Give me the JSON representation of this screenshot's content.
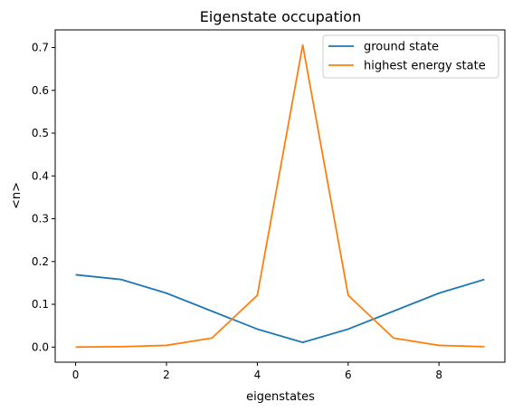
{
  "chart_data": {
    "type": "line",
    "title": "Eigenstate occupation",
    "xlabel": "eigenstates",
    "ylabel": "<n>",
    "xlim": [
      -0.45,
      9.45
    ],
    "ylim": [
      -0.0353,
      0.7413
    ],
    "x_ticks": [
      0,
      2,
      4,
      6,
      8
    ],
    "y_ticks": [
      0.0,
      0.1,
      0.2,
      0.3,
      0.4,
      0.5,
      0.6,
      0.7
    ],
    "x_tick_labels": [
      "0",
      "2",
      "4",
      "6",
      "8"
    ],
    "y_tick_labels": [
      "0.0",
      "0.1",
      "0.2",
      "0.3",
      "0.4",
      "0.5",
      "0.6",
      "0.7"
    ],
    "grid": false,
    "legend_position": "top-right",
    "x": [
      0,
      1,
      2,
      3,
      4,
      5,
      6,
      7,
      8,
      9
    ],
    "series": [
      {
        "name": "ground state",
        "color": "#1f77b4",
        "values": [
          0.169,
          0.158,
          0.126,
          0.084,
          0.042,
          0.011,
          0.042,
          0.084,
          0.126,
          0.158
        ]
      },
      {
        "name": "highest energy state",
        "color": "#ff7f0e",
        "values": [
          0.0,
          0.001,
          0.004,
          0.021,
          0.121,
          0.706,
          0.121,
          0.021,
          0.004,
          0.001
        ]
      }
    ]
  }
}
